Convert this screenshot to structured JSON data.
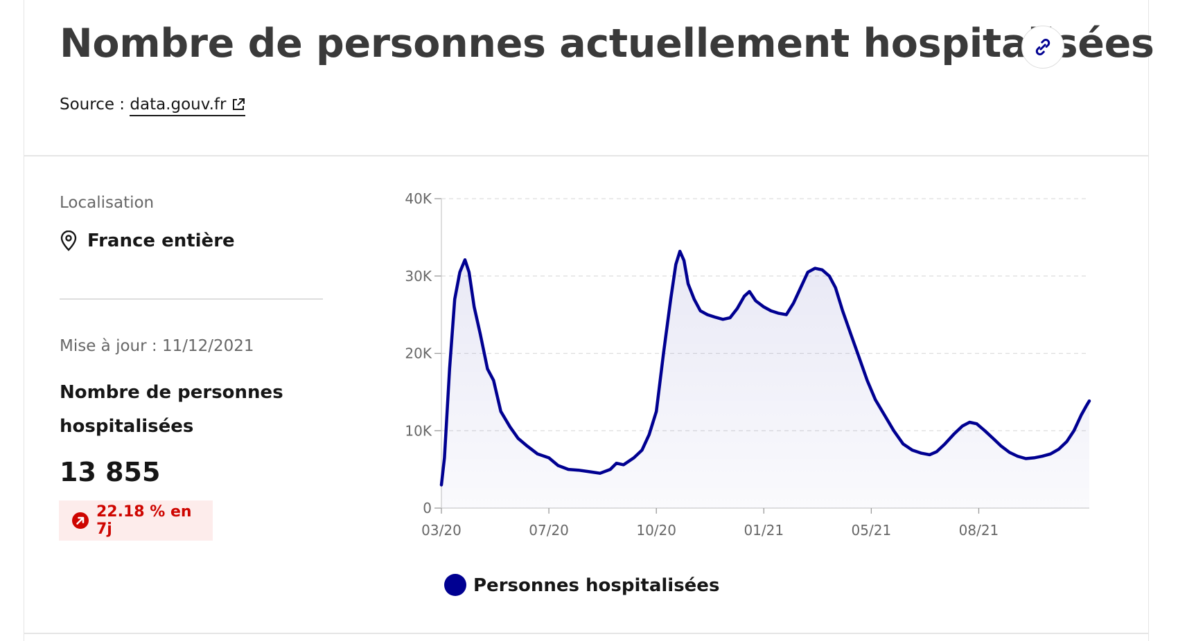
{
  "header": {
    "title": "Nombre de personnes actuellement hospitalisées",
    "source_prefix": "Source :",
    "source_link": "data.gouv.fr"
  },
  "sidebar": {
    "location_label": "Localisation",
    "location_value": "France entière",
    "update_text": "Mise à jour : 11/12/2021",
    "metric_label": "Nombre de personnes hospitalisées",
    "metric_value": "13 855",
    "trend_text": "22.18 % en 7j"
  },
  "icons": {
    "link": "link-icon",
    "external": "external-link-icon",
    "location": "map-pin-icon",
    "trend": "arrow-up-right-icon"
  },
  "colors": {
    "series": "#000091",
    "area": "#f1f1fc",
    "trend_red": "#ce0500",
    "badge_bg": "#fdeceb"
  },
  "chart_data": {
    "type": "area",
    "title": "",
    "xlabel": "",
    "ylabel": "",
    "grid": true,
    "legend_position": "bottom",
    "ylim": [
      0,
      40000
    ],
    "y_ticks": [
      {
        "value": 0,
        "label": "0"
      },
      {
        "value": 10000,
        "label": "10K"
      },
      {
        "value": 20000,
        "label": "20K"
      },
      {
        "value": 30000,
        "label": "30K"
      },
      {
        "value": 40000,
        "label": "40K"
      }
    ],
    "x_range": [
      "2020-03-18",
      "2021-12-11"
    ],
    "x_ticks": [
      {
        "date": "2020-03-18",
        "label": "03/20"
      },
      {
        "date": "2020-07-01",
        "label": "07/20"
      },
      {
        "date": "2020-10-14",
        "label": "10/20"
      },
      {
        "date": "2021-01-27",
        "label": "01/21"
      },
      {
        "date": "2021-05-12",
        "label": "05/21"
      },
      {
        "date": "2021-08-25",
        "label": "08/21"
      }
    ],
    "series": [
      {
        "name": "Personnes hospitalisées",
        "color": "#000091",
        "points": [
          [
            "2020-03-18",
            3000
          ],
          [
            "2020-03-21",
            6500
          ],
          [
            "2020-03-26",
            18000
          ],
          [
            "2020-03-31",
            27000
          ],
          [
            "2020-04-05",
            30500
          ],
          [
            "2020-04-10",
            32100
          ],
          [
            "2020-04-14",
            30500
          ],
          [
            "2020-04-19",
            26000
          ],
          [
            "2020-04-25",
            22500
          ],
          [
            "2020-05-02",
            18000
          ],
          [
            "2020-05-08",
            16500
          ],
          [
            "2020-05-15",
            12500
          ],
          [
            "2020-05-24",
            10500
          ],
          [
            "2020-06-01",
            9000
          ],
          [
            "2020-06-10",
            8000
          ],
          [
            "2020-06-20",
            7000
          ],
          [
            "2020-07-01",
            6500
          ],
          [
            "2020-07-10",
            5500
          ],
          [
            "2020-07-20",
            5000
          ],
          [
            "2020-07-30",
            4900
          ],
          [
            "2020-08-10",
            4700
          ],
          [
            "2020-08-20",
            4500
          ],
          [
            "2020-08-30",
            5000
          ],
          [
            "2020-09-05",
            5800
          ],
          [
            "2020-09-12",
            5600
          ],
          [
            "2020-09-22",
            6500
          ],
          [
            "2020-09-30",
            7500
          ],
          [
            "2020-10-07",
            9500
          ],
          [
            "2020-10-14",
            12500
          ],
          [
            "2020-10-21",
            20000
          ],
          [
            "2020-10-28",
            27000
          ],
          [
            "2020-11-02",
            31500
          ],
          [
            "2020-11-06",
            33200
          ],
          [
            "2020-11-10",
            32000
          ],
          [
            "2020-11-14",
            29000
          ],
          [
            "2020-11-20",
            27000
          ],
          [
            "2020-11-26",
            25500
          ],
          [
            "2020-12-03",
            25000
          ],
          [
            "2020-12-10",
            24700
          ],
          [
            "2020-12-18",
            24400
          ],
          [
            "2020-12-25",
            24600
          ],
          [
            "2021-01-01",
            25800
          ],
          [
            "2021-01-08",
            27400
          ],
          [
            "2021-01-13",
            28000
          ],
          [
            "2021-01-19",
            26800
          ],
          [
            "2021-01-27",
            26000
          ],
          [
            "2021-02-03",
            25500
          ],
          [
            "2021-02-10",
            25200
          ],
          [
            "2021-02-18",
            25000
          ],
          [
            "2021-02-25",
            26500
          ],
          [
            "2021-03-04",
            28500
          ],
          [
            "2021-03-11",
            30500
          ],
          [
            "2021-03-18",
            31000
          ],
          [
            "2021-03-25",
            30800
          ],
          [
            "2021-04-01",
            30000
          ],
          [
            "2021-04-07",
            28500
          ],
          [
            "2021-04-14",
            25500
          ],
          [
            "2021-04-22",
            22500
          ],
          [
            "2021-04-30",
            19500
          ],
          [
            "2021-05-08",
            16500
          ],
          [
            "2021-05-16",
            14000
          ],
          [
            "2021-05-25",
            12000
          ],
          [
            "2021-06-03",
            10000
          ],
          [
            "2021-06-12",
            8300
          ],
          [
            "2021-06-21",
            7500
          ],
          [
            "2021-06-30",
            7100
          ],
          [
            "2021-07-08",
            6900
          ],
          [
            "2021-07-15",
            7300
          ],
          [
            "2021-07-23",
            8300
          ],
          [
            "2021-08-01",
            9600
          ],
          [
            "2021-08-09",
            10600
          ],
          [
            "2021-08-16",
            11100
          ],
          [
            "2021-08-23",
            10900
          ],
          [
            "2021-08-31",
            10000
          ],
          [
            "2021-09-08",
            9000
          ],
          [
            "2021-09-16",
            8000
          ],
          [
            "2021-09-24",
            7200
          ],
          [
            "2021-10-02",
            6700
          ],
          [
            "2021-10-10",
            6400
          ],
          [
            "2021-10-18",
            6500
          ],
          [
            "2021-10-26",
            6700
          ],
          [
            "2021-11-03",
            7000
          ],
          [
            "2021-11-11",
            7600
          ],
          [
            "2021-11-19",
            8600
          ],
          [
            "2021-11-26",
            10000
          ],
          [
            "2021-12-03",
            12000
          ],
          [
            "2021-12-08",
            13200
          ],
          [
            "2021-12-11",
            13855
          ]
        ]
      }
    ]
  }
}
